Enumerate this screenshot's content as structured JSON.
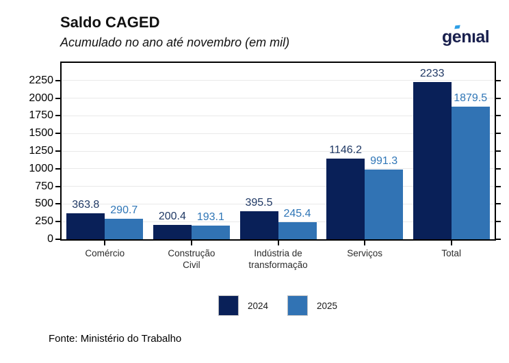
{
  "header": {
    "title": "Saldo CAGED",
    "subtitle": "Acumulado no ano até novembro (em mil)"
  },
  "logo": {
    "text_pre": "g",
    "text_e": "e",
    "text_post": "nıal",
    "text_color": "#181f4d",
    "accent_color": "#2e9fe6"
  },
  "chart_data": {
    "type": "bar",
    "title": "Saldo CAGED",
    "subtitle": "Acumulado no ano até novembro (em mil)",
    "categories": [
      "Comércio",
      "Construção\nCivil",
      "Indústria de\ntransformação",
      "Serviços",
      "Total"
    ],
    "series": [
      {
        "name": "2024",
        "color": "#092058",
        "label_color": "#1f3864",
        "values": [
          363.8,
          200.4,
          395.5,
          1146.2,
          2233
        ],
        "labels": [
          "363.8",
          "200.4",
          "395.5",
          "1146.2",
          "2233"
        ]
      },
      {
        "name": "2025",
        "color": "#3173b4",
        "label_color": "#2e75b6",
        "values": [
          290.7,
          193.1,
          245.4,
          991.3,
          1879.5
        ],
        "labels": [
          "290.7",
          "193.1",
          "245.4",
          "991.3",
          "1879.5"
        ]
      }
    ],
    "xlabel": "",
    "ylabel": "",
    "ylim": [
      0,
      2500
    ],
    "yticks": [
      0,
      250,
      500,
      750,
      1000,
      1250,
      1500,
      1750,
      2000,
      2250
    ],
    "grid": "horizontal",
    "gridline_color": "#e9e9e9",
    "legend_position": "bottom"
  },
  "footer": {
    "source": "Fonte: Ministério do Trabalho"
  }
}
